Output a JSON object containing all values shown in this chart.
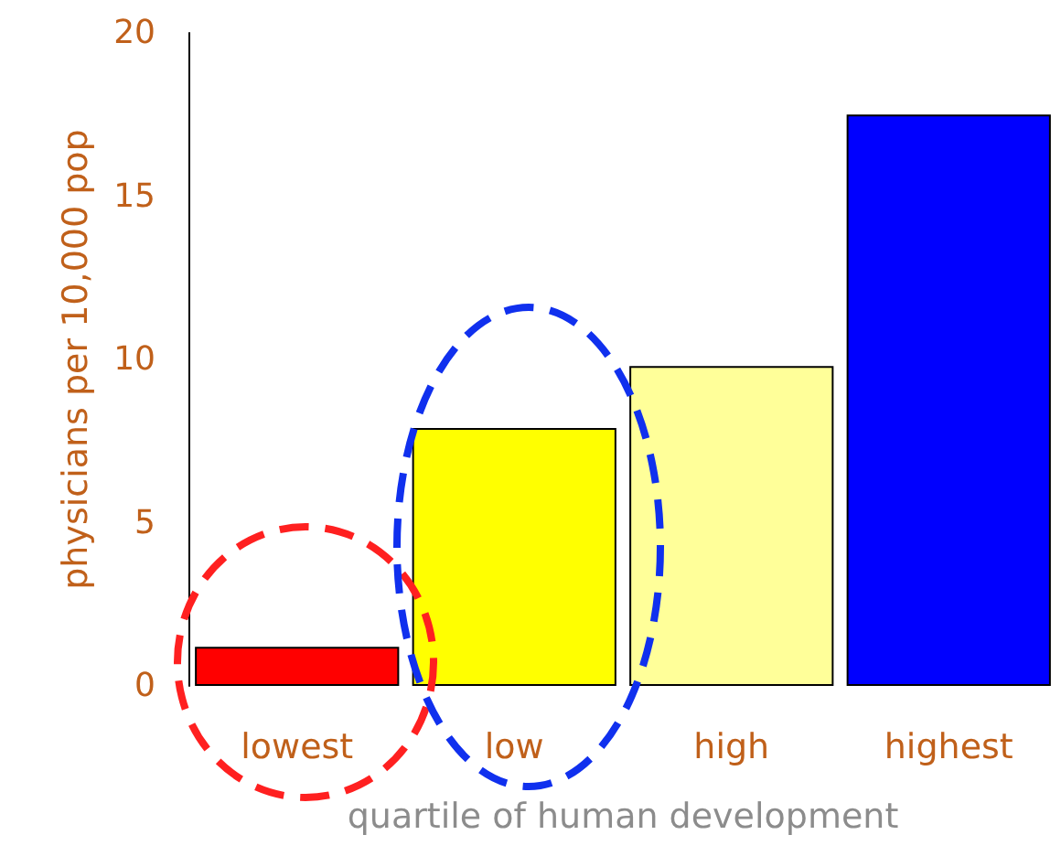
{
  "chart_data": {
    "type": "bar",
    "xlabel": "quartile of human development",
    "ylabel": "physicians per 10,000 pop",
    "categories": [
      "lowest",
      "low",
      "high",
      "highest"
    ],
    "values": [
      1.2,
      7.9,
      9.8,
      17.5
    ],
    "colors": [
      "#ff0000",
      "#ffff00",
      "#ffff99",
      "#0000ff"
    ],
    "ylim": [
      0,
      20
    ],
    "yticks": [
      0,
      5,
      10,
      15,
      20
    ],
    "grid": false
  }
}
